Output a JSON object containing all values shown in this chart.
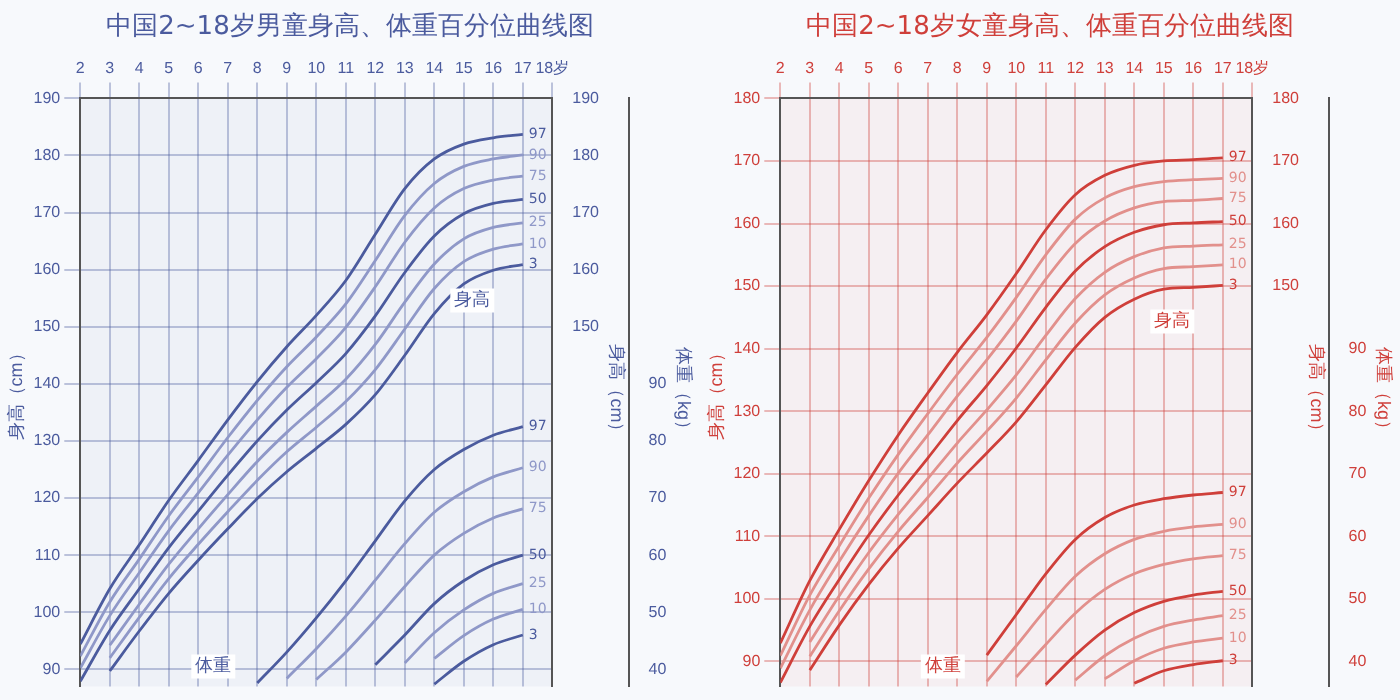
{
  "chart_data": [
    {
      "type": "line",
      "title": "中国2~18岁男童身高、体重百分位曲线图",
      "ylabel": "身高（cm）",
      "y2label": "体重（kg）",
      "y3label": "身高（cm）",
      "x": [
        2,
        3,
        4,
        5,
        6,
        7,
        8,
        9,
        10,
        11,
        12,
        13,
        14,
        15,
        16,
        17
      ],
      "xlim": [
        2,
        18
      ],
      "xticks": [
        2,
        3,
        4,
        5,
        6,
        7,
        8,
        9,
        10,
        11,
        12,
        13,
        14,
        15,
        16,
        17,
        {
          "value": 18,
          "label": "18岁"
        }
      ],
      "ylim": [
        87,
        190
      ],
      "yticks": [
        90,
        100,
        110,
        120,
        130,
        140,
        150,
        160,
        170,
        180,
        190
      ],
      "y2lim": [
        37,
        140
      ],
      "y2ticks": [
        40,
        50,
        60,
        70,
        80,
        90
      ],
      "y3lim": [
        87,
        190
      ],
      "y3ticks": [
        150,
        160,
        170,
        180,
        190
      ],
      "grid": true,
      "marker": "none",
      "line_style": "solid",
      "annotations": [
        "身高",
        "体重"
      ],
      "series": [
        {
          "name": "97",
          "color": "#4b5b9e",
          "values": [
            94.4,
            104.1,
            111.8,
            119.6,
            126.6,
            133.7,
            140.4,
            146.5,
            152.0,
            158.1,
            166.2,
            174.2,
            179.4,
            182.0,
            183.1,
            183.7
          ]
        },
        {
          "name": "90",
          "color": "#8f98c8",
          "values": [
            92.3,
            101.8,
            109.3,
            116.9,
            123.7,
            130.6,
            137.1,
            143.0,
            148.2,
            154.0,
            161.6,
            169.5,
            175.1,
            178.1,
            179.4,
            180.1
          ]
        },
        {
          "name": "75",
          "color": "#8f98c8",
          "values": [
            90.2,
            99.4,
            106.9,
            114.3,
            120.9,
            127.5,
            133.7,
            139.4,
            144.4,
            149.9,
            157.0,
            164.8,
            170.8,
            174.2,
            175.7,
            176.4
          ]
        },
        {
          "name": "50",
          "color": "#4b5b9e",
          "values": [
            87.9,
            96.8,
            104.1,
            111.3,
            117.7,
            124.0,
            130.0,
            135.4,
            140.2,
            145.3,
            151.9,
            159.5,
            165.9,
            169.8,
            171.6,
            172.3
          ]
        },
        {
          "name": "25",
          "color": "#8f98c8",
          "values": [
            null,
            94.2,
            101.4,
            108.4,
            114.6,
            120.6,
            126.4,
            131.5,
            136.1,
            140.8,
            146.9,
            154.3,
            161.0,
            165.4,
            167.4,
            168.2
          ]
        },
        {
          "name": "10",
          "color": "#8f98c8",
          "values": [
            null,
            92.0,
            99.1,
            105.9,
            111.9,
            117.6,
            123.1,
            128.1,
            132.4,
            136.9,
            142.5,
            149.6,
            156.7,
            161.4,
            163.6,
            164.5
          ]
        },
        {
          "name": "3",
          "color": "#4b5b9e",
          "values": [
            null,
            89.7,
            96.7,
            103.3,
            109.1,
            114.6,
            119.9,
            124.6,
            128.7,
            132.9,
            138.1,
            145.0,
            152.3,
            157.5,
            159.9,
            160.9
          ]
        },
        {
          "name": "97",
          "color": "#4b5b9e",
          "axis": "y2",
          "values": [
            null,
            null,
            null,
            null,
            null,
            null,
            37.6,
            43.0,
            49.0,
            55.5,
            62.5,
            69.5,
            75.0,
            78.5,
            81.0,
            82.5
          ]
        },
        {
          "name": "90",
          "color": "#8f98c8",
          "axis": "y2",
          "values": [
            null,
            null,
            null,
            null,
            null,
            null,
            null,
            38.4,
            43.6,
            49.3,
            55.6,
            62.0,
            67.5,
            71.1,
            73.7,
            75.3
          ]
        },
        {
          "name": "75",
          "color": "#8f98c8",
          "axis": "y2",
          "values": [
            null,
            null,
            null,
            null,
            null,
            null,
            null,
            null,
            38.2,
            43.0,
            48.6,
            54.5,
            60.0,
            63.8,
            66.5,
            68.1
          ]
        },
        {
          "name": "50",
          "color": "#4b5b9e",
          "axis": "y2",
          "values": [
            null,
            null,
            null,
            null,
            null,
            null,
            null,
            null,
            null,
            null,
            40.8,
            46.0,
            51.5,
            55.5,
            58.3,
            60.0
          ]
        },
        {
          "name": "25",
          "color": "#8f98c8",
          "axis": "y2",
          "values": [
            null,
            null,
            null,
            null,
            null,
            null,
            null,
            null,
            null,
            null,
            null,
            41.1,
            46.4,
            50.4,
            53.3,
            55.0
          ]
        },
        {
          "name": "10",
          "color": "#8f98c8",
          "axis": "y2",
          "values": [
            null,
            null,
            null,
            null,
            null,
            null,
            null,
            null,
            null,
            null,
            null,
            null,
            41.9,
            45.9,
            48.8,
            50.5
          ]
        },
        {
          "name": "3",
          "color": "#4b5b9e",
          "axis": "y2",
          "values": [
            null,
            null,
            null,
            null,
            null,
            null,
            null,
            null,
            null,
            null,
            null,
            null,
            37.4,
            41.4,
            44.3,
            46.0
          ]
        }
      ]
    },
    {
      "type": "line",
      "title": "中国2~18岁女童身高、体重百分位曲线图",
      "ylabel": "身高（cm）",
      "y2label": "体重（kg）",
      "y3label": "身高（cm）",
      "x": [
        2,
        3,
        4,
        5,
        6,
        7,
        8,
        9,
        10,
        11,
        12,
        13,
        14,
        15,
        16,
        17
      ],
      "xlim": [
        2,
        18
      ],
      "xticks": [
        2,
        3,
        4,
        5,
        6,
        7,
        8,
        9,
        10,
        11,
        12,
        13,
        14,
        15,
        16,
        17,
        {
          "value": 18,
          "label": "18岁"
        }
      ],
      "ylim": [
        86,
        180
      ],
      "yticks": [
        90,
        100,
        110,
        120,
        130,
        140,
        150,
        160,
        170,
        180
      ],
      "y2lim": [
        36,
        130
      ],
      "y2ticks": [
        40,
        50,
        60,
        70,
        80,
        90
      ],
      "y3lim": [
        86,
        180
      ],
      "y3ticks": [
        150,
        160,
        170,
        180
      ],
      "grid": true,
      "marker": "none",
      "line_style": "solid",
      "annotations": [
        "身高",
        "体重"
      ],
      "series": [
        {
          "name": "97",
          "color": "#cf3f3a",
          "values": [
            92.9,
            102.9,
            111.1,
            118.9,
            126.2,
            132.9,
            139.4,
            145.4,
            152.0,
            159.0,
            164.6,
            167.7,
            169.3,
            170.0,
            170.2,
            170.5
          ]
        },
        {
          "name": "90",
          "color": "#e2908c",
          "values": [
            90.9,
            100.6,
            108.5,
            116.1,
            123.1,
            129.6,
            135.9,
            141.8,
            148.2,
            155.0,
            160.7,
            164.1,
            165.9,
            166.7,
            167.0,
            167.2
          ]
        },
        {
          "name": "75",
          "color": "#e2908c",
          "values": [
            88.9,
            98.2,
            106.0,
            113.3,
            120.1,
            126.2,
            132.4,
            138.2,
            144.4,
            151.1,
            156.8,
            160.4,
            162.5,
            163.5,
            163.7,
            164.0
          ]
        },
        {
          "name": "50",
          "color": "#cf3f3a",
          "values": [
            86.6,
            95.6,
            103.1,
            110.2,
            116.6,
            122.5,
            128.5,
            134.1,
            140.1,
            146.6,
            152.4,
            156.3,
            158.6,
            159.8,
            160.1,
            160.3
          ]
        },
        {
          "name": "25",
          "color": "#e2908c",
          "values": [
            null,
            93.1,
            100.5,
            107.4,
            113.5,
            119.2,
            124.9,
            130.2,
            135.8,
            142.1,
            148.0,
            152.2,
            154.7,
            156.1,
            156.4,
            156.6
          ]
        },
        {
          "name": "10",
          "color": "#e2908c",
          "values": [
            null,
            90.8,
            98.1,
            104.8,
            110.8,
            116.2,
            121.7,
            126.8,
            132.1,
            138.2,
            144.1,
            148.6,
            151.3,
            152.8,
            153.1,
            153.4
          ]
        },
        {
          "name": "3",
          "color": "#cf3f3a",
          "values": [
            null,
            88.6,
            95.8,
            102.3,
            108.1,
            113.3,
            118.5,
            123.3,
            128.3,
            134.2,
            140.2,
            145.0,
            147.9,
            149.5,
            149.8,
            150.1
          ]
        },
        {
          "name": "97",
          "color": "#cf3f3a",
          "axis": "y2",
          "values": [
            null,
            null,
            null,
            null,
            null,
            null,
            null,
            41.0,
            47.5,
            54.0,
            59.5,
            63.0,
            65.0,
            66.0,
            66.6,
            67.0
          ]
        },
        {
          "name": "90",
          "color": "#e2908c",
          "axis": "y2",
          "values": [
            null,
            null,
            null,
            null,
            null,
            null,
            null,
            36.8,
            42.5,
            48.3,
            53.6,
            57.2,
            59.5,
            60.8,
            61.5,
            61.9
          ]
        },
        {
          "name": "75",
          "color": "#e2908c",
          "axis": "y2",
          "values": [
            null,
            null,
            null,
            null,
            null,
            null,
            null,
            null,
            37.5,
            42.7,
            47.7,
            51.5,
            54.0,
            55.5,
            56.4,
            56.9
          ]
        },
        {
          "name": "50",
          "color": "#cf3f3a",
          "axis": "y2",
          "values": [
            null,
            null,
            null,
            null,
            null,
            null,
            null,
            null,
            null,
            36.3,
            41.0,
            45.0,
            47.8,
            49.6,
            50.6,
            51.2
          ]
        },
        {
          "name": "25",
          "color": "#e2908c",
          "axis": "y2",
          "values": [
            null,
            null,
            null,
            null,
            null,
            null,
            null,
            null,
            null,
            null,
            37.0,
            40.9,
            43.7,
            45.6,
            46.6,
            47.3
          ]
        },
        {
          "name": "10",
          "color": "#e2908c",
          "axis": "y2",
          "values": [
            null,
            null,
            null,
            null,
            null,
            null,
            null,
            null,
            null,
            null,
            null,
            37.2,
            40.1,
            42.1,
            43.1,
            43.7
          ]
        },
        {
          "name": "3",
          "color": "#cf3f3a",
          "axis": "y2",
          "values": [
            null,
            null,
            null,
            null,
            null,
            null,
            null,
            null,
            null,
            null,
            null,
            null,
            36.5,
            38.5,
            39.5,
            40.1
          ]
        }
      ]
    }
  ]
}
